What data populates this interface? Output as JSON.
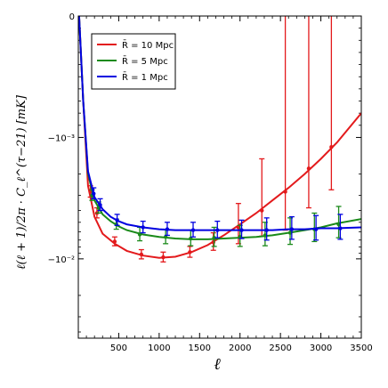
{
  "chart_data": {
    "type": "line",
    "xlabel": "ℓ",
    "ylabel": "ℓ(ℓ + 1)/2π · C_ℓ^(τ−21) [mK]",
    "xlim": [
      0,
      3500
    ],
    "ylim_label": "symlog",
    "x_ticks": [
      500,
      1000,
      1500,
      2000,
      2500,
      3000,
      3500
    ],
    "y_ticks": [
      {
        "value": 0,
        "label": "0"
      },
      {
        "value": -0.001,
        "label": "−10⁻³"
      },
      {
        "value": -0.01,
        "label": "−10⁻²"
      }
    ],
    "legend": {
      "placement": "top-left"
    },
    "series": [
      {
        "name": "R̄ = 10 Mpc",
        "color": "#e31a1c",
        "curve": [
          [
            10,
            0
          ],
          [
            60,
            -0.0007
          ],
          [
            120,
            -0.0025
          ],
          [
            200,
            -0.0045
          ],
          [
            300,
            -0.0062
          ],
          [
            450,
            -0.0075
          ],
          [
            600,
            -0.0086
          ],
          [
            800,
            -0.0094
          ],
          [
            1000,
            -0.0098
          ],
          [
            1200,
            -0.0096
          ],
          [
            1400,
            -0.0088
          ],
          [
            1600,
            -0.0077
          ],
          [
            1800,
            -0.0064
          ],
          [
            2000,
            -0.0052
          ],
          [
            2200,
            -0.0042
          ],
          [
            2400,
            -0.0033
          ],
          [
            2600,
            -0.0026
          ],
          [
            2800,
            -0.002
          ],
          [
            3000,
            -0.0015
          ],
          [
            3200,
            -0.0011
          ],
          [
            3500,
            -0.0008
          ]
        ],
        "points": [
          {
            "x": 150,
            "y": -0.0028,
            "yerr": 0.0003
          },
          {
            "x": 230,
            "y": -0.0042,
            "yerr": 0.0004
          },
          {
            "x": 450,
            "y": -0.0072,
            "yerr": 0.0006
          },
          {
            "x": 780,
            "y": -0.0092,
            "yerr": 0.0008
          },
          {
            "x": 1050,
            "y": -0.0097,
            "yerr": 0.0009
          },
          {
            "x": 1380,
            "y": -0.0088,
            "yerr": 0.0009
          },
          {
            "x": 1670,
            "y": -0.0073,
            "yerr": 0.0012
          },
          {
            "x": 1980,
            "y": -0.0055,
            "yerr": 0.002
          },
          {
            "x": 2270,
            "y": -0.004,
            "yerr": 0.0025
          },
          {
            "x": 2560,
            "y": -0.0028,
            "yerr": 0.003
          },
          {
            "x": 2850,
            "y": -0.0018,
            "yerr": 0.002
          },
          {
            "x": 3130,
            "y": -0.0012,
            "yerr": 0.0015
          }
        ]
      },
      {
        "name": "R̄ = 5 Mpc",
        "color": "#1a8a1a",
        "curve": [
          [
            10,
            0
          ],
          [
            60,
            -0.0007
          ],
          [
            120,
            -0.002
          ],
          [
            200,
            -0.0033
          ],
          [
            300,
            -0.0043
          ],
          [
            400,
            -0.0049
          ],
          [
            500,
            -0.0054
          ],
          [
            600,
            -0.0058
          ],
          [
            800,
            -0.0063
          ],
          [
            1000,
            -0.0066
          ],
          [
            1200,
            -0.0068
          ],
          [
            1400,
            -0.0069
          ],
          [
            1600,
            -0.0069
          ],
          [
            1800,
            -0.0068
          ],
          [
            2000,
            -0.0067
          ],
          [
            2200,
            -0.0066
          ],
          [
            2400,
            -0.0064
          ],
          [
            2600,
            -0.0061
          ],
          [
            2800,
            -0.0058
          ],
          [
            3000,
            -0.0055
          ],
          [
            3200,
            -0.0051
          ],
          [
            3500,
            -0.0047
          ]
        ],
        "points": [
          {
            "x": 170,
            "y": -0.003,
            "yerr": 0.0003
          },
          {
            "x": 250,
            "y": -0.0038,
            "yerr": 0.0004
          },
          {
            "x": 470,
            "y": -0.0052,
            "yerr": 0.0005
          },
          {
            "x": 760,
            "y": -0.0063,
            "yerr": 0.0008
          },
          {
            "x": 1080,
            "y": -0.0066,
            "yerr": 0.0009
          },
          {
            "x": 1390,
            "y": -0.0068,
            "yerr": 0.001
          },
          {
            "x": 1680,
            "y": -0.0067,
            "yerr": 0.0012
          },
          {
            "x": 2000,
            "y": -0.0066,
            "yerr": 0.0013
          },
          {
            "x": 2310,
            "y": -0.0064,
            "yerr": 0.0014
          },
          {
            "x": 2620,
            "y": -0.0061,
            "yerr": 0.0015
          },
          {
            "x": 2920,
            "y": -0.0057,
            "yerr": 0.0015
          },
          {
            "x": 3220,
            "y": -0.0052,
            "yerr": 0.0015
          }
        ]
      },
      {
        "name": "R̄ = 1 Mpc",
        "color": "#0000e0",
        "curve": [
          [
            10,
            0
          ],
          [
            60,
            -0.0007
          ],
          [
            120,
            -0.0019
          ],
          [
            200,
            -0.0031
          ],
          [
            300,
            -0.0039
          ],
          [
            400,
            -0.0045
          ],
          [
            500,
            -0.0049
          ],
          [
            600,
            -0.0052
          ],
          [
            800,
            -0.0055
          ],
          [
            1000,
            -0.0057
          ],
          [
            1200,
            -0.0058
          ],
          [
            1400,
            -0.0058
          ],
          [
            1600,
            -0.0058
          ],
          [
            1800,
            -0.0058
          ],
          [
            2000,
            -0.0058
          ],
          [
            2200,
            -0.0058
          ],
          [
            2400,
            -0.0058
          ],
          [
            2600,
            -0.0057
          ],
          [
            2800,
            -0.0057
          ],
          [
            3000,
            -0.0056
          ],
          [
            3200,
            -0.0056
          ],
          [
            3500,
            -0.0055
          ]
        ],
        "points": [
          {
            "x": 190,
            "y": -0.0029,
            "yerr": 0.0003
          },
          {
            "x": 270,
            "y": -0.0036,
            "yerr": 0.0004
          },
          {
            "x": 480,
            "y": -0.0048,
            "yerr": 0.0005
          },
          {
            "x": 800,
            "y": -0.0055,
            "yerr": 0.0006
          },
          {
            "x": 1100,
            "y": -0.0057,
            "yerr": 0.0007
          },
          {
            "x": 1420,
            "y": -0.0058,
            "yerr": 0.0008
          },
          {
            "x": 1720,
            "y": -0.0058,
            "yerr": 0.0009
          },
          {
            "x": 2020,
            "y": -0.0058,
            "yerr": 0.001
          },
          {
            "x": 2330,
            "y": -0.0058,
            "yerr": 0.0012
          },
          {
            "x": 2640,
            "y": -0.0057,
            "yerr": 0.0012
          },
          {
            "x": 2940,
            "y": -0.0057,
            "yerr": 0.0013
          },
          {
            "x": 3240,
            "y": -0.0056,
            "yerr": 0.0013
          }
        ]
      }
    ]
  }
}
